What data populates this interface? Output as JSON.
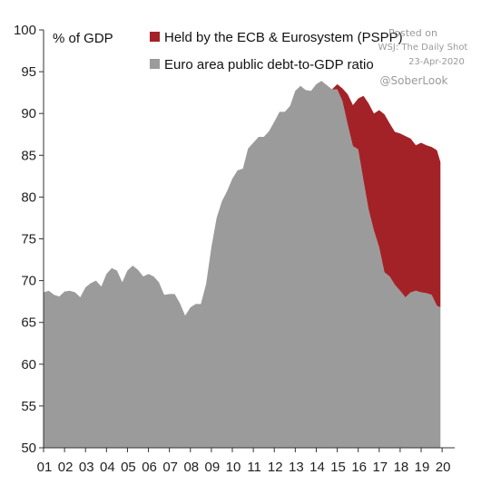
{
  "chart_data": {
    "type": "area",
    "unit_label": "% of GDP",
    "xlim": [
      2001,
      2020.6
    ],
    "ylim": [
      50,
      100
    ],
    "yticks": [
      50,
      55,
      60,
      65,
      70,
      75,
      80,
      85,
      90,
      95,
      100
    ],
    "xtick_labels": [
      "01",
      "02",
      "03",
      "04",
      "05",
      "06",
      "07",
      "08",
      "09",
      "10",
      "11",
      "12",
      "13",
      "14",
      "15",
      "16",
      "17",
      "18",
      "19",
      "20"
    ],
    "grid": false,
    "legend_position": "top",
    "series": [
      {
        "name": "Euro area public debt-to-GDP ratio",
        "color": "#9b9b9b",
        "x": [
          2001,
          2001.25,
          2001.5,
          2001.75,
          2002,
          2002.25,
          2002.5,
          2002.75,
          2003,
          2003.25,
          2003.5,
          2003.75,
          2004,
          2004.25,
          2004.5,
          2004.75,
          2005,
          2005.25,
          2005.5,
          2005.75,
          2006,
          2006.25,
          2006.5,
          2006.75,
          2007,
          2007.25,
          2007.5,
          2007.75,
          2008,
          2008.25,
          2008.5,
          2008.75,
          2009,
          2009.25,
          2009.5,
          2009.75,
          2010,
          2010.25,
          2010.5,
          2010.75,
          2011,
          2011.25,
          2011.5,
          2011.75,
          2012,
          2012.25,
          2012.5,
          2012.75,
          2013,
          2013.25,
          2013.5,
          2013.75,
          2014,
          2014.25,
          2014.5,
          2014.75,
          2015,
          2015.25,
          2015.5,
          2015.75,
          2016,
          2016.25,
          2016.5,
          2016.75,
          2017,
          2017.25,
          2017.5,
          2017.75,
          2018,
          2018.25,
          2018.5,
          2018.75,
          2019,
          2019.25,
          2019.5,
          2019.75,
          2019.92
        ],
        "values": [
          68.6,
          68.8,
          68.3,
          68.1,
          68.7,
          68.8,
          68.6,
          68.0,
          69.2,
          69.7,
          70.0,
          69.3,
          70.8,
          71.5,
          71.2,
          69.8,
          71.2,
          71.8,
          71.3,
          70.5,
          70.8,
          70.5,
          69.8,
          68.3,
          68.4,
          68.4,
          67.3,
          65.8,
          66.8,
          67.2,
          67.2,
          69.6,
          74.0,
          77.5,
          79.5,
          80.7,
          82.2,
          83.2,
          83.4,
          85.8,
          86.5,
          87.2,
          87.2,
          87.9,
          89.0,
          90.2,
          90.2,
          90.9,
          92.7,
          93.3,
          92.8,
          92.7,
          93.5,
          93.9,
          93.4,
          92.9,
          92.9,
          91.5,
          88.7,
          86.1,
          85.7,
          82.0,
          78.5,
          76.0,
          74.0,
          71.0,
          70.5,
          69.5,
          68.8,
          68.0,
          68.6,
          68.8,
          68.6,
          68.5,
          68.3,
          67.0,
          66.8
        ]
      },
      {
        "name": "Held by the ECB & Eurosystem (PSPP)",
        "color": "#a32227",
        "x": [
          2014.75,
          2015,
          2015.25,
          2015.5,
          2015.75,
          2016,
          2016.25,
          2016.5,
          2016.75,
          2017,
          2017.25,
          2017.5,
          2017.75,
          2018,
          2018.25,
          2018.5,
          2018.75,
          2019,
          2019.25,
          2019.5,
          2019.75,
          2019.92
        ],
        "top": [
          92.9,
          93.5,
          93.0,
          92.3,
          91.0,
          91.8,
          92.1,
          91.2,
          90.0,
          90.4,
          89.9,
          88.8,
          87.8,
          87.6,
          87.3,
          87.0,
          86.2,
          86.5,
          86.2,
          86.0,
          85.6,
          84.2
        ],
        "bottom": [
          92.9,
          92.9,
          91.5,
          88.7,
          86.1,
          85.7,
          82.0,
          78.5,
          76.0,
          74.0,
          71.0,
          70.5,
          69.5,
          68.8,
          68.0,
          68.6,
          68.8,
          68.6,
          68.5,
          68.3,
          67.0,
          66.8
        ]
      }
    ]
  },
  "annotations": {
    "posted_on": "Posted on",
    "source": "WSJ: The Daily Shot",
    "date": "23-Apr-2020",
    "handle": "@SoberLook"
  }
}
